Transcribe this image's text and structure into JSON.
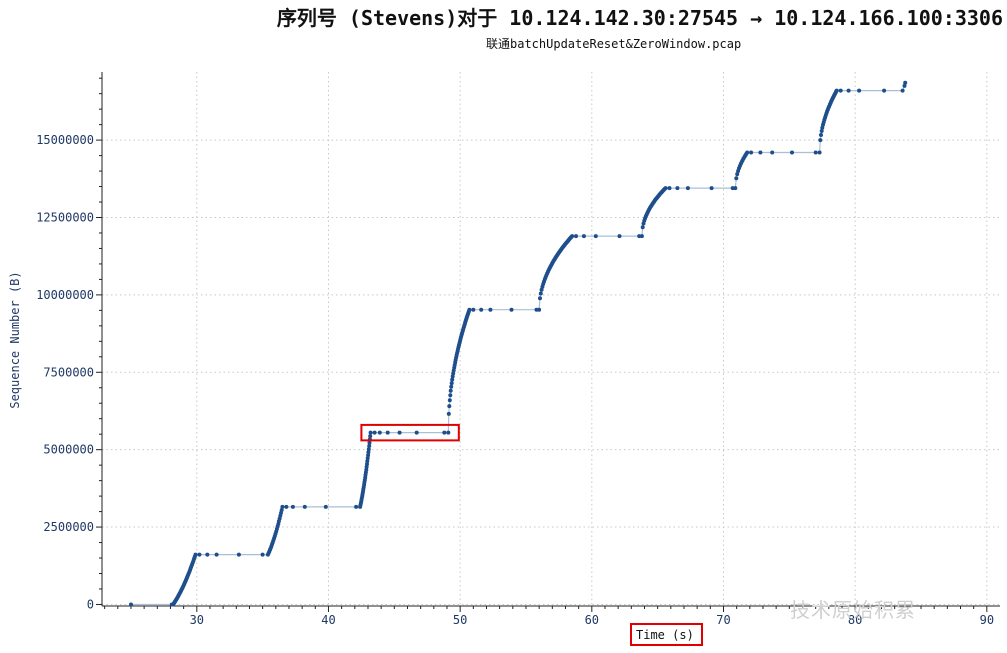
{
  "header": {
    "title": "序列号 (Stevens)对于 10.124.142.30:27545 → 10.124.166.100:3306",
    "subtitle": "联通batchUpdateReset&ZeroWindow.pcap"
  },
  "watermark": "技术原始积累",
  "colors": {
    "series": "#1f4e8c",
    "line": "#a9bfd6",
    "grid": "#c8c8c8",
    "highlight": "#e00000",
    "axis": "#1f3864"
  },
  "chart_data": {
    "type": "scatter",
    "title": "序列号 (Stevens)对于 10.124.142.30:27545 → 10.124.166.100:3306",
    "subtitle": "联通batchUpdateReset&ZeroWindow.pcap",
    "xlabel": "Time (s)",
    "ylabel": "Sequence Number (B)",
    "xlim": [
      22.8,
      91
    ],
    "ylim": [
      -50000,
      17200000
    ],
    "xticks": [
      30,
      40,
      50,
      60,
      70,
      80,
      90
    ],
    "yticks": [
      0,
      2500000,
      5000000,
      7500000,
      10000000,
      12500000,
      15000000
    ],
    "ytick_labels": [
      "0",
      "2500000",
      "5000000",
      "7500000",
      "10000000",
      "12500000",
      "15000000"
    ],
    "grid": true,
    "highlights": [
      {
        "description": "flat segment",
        "x_range": [
          42.5,
          49.9
        ],
        "y_range": [
          5300000,
          5800000
        ]
      },
      {
        "description": "x-axis label",
        "target": "xlabel"
      }
    ],
    "segments": [
      {
        "t0": 28.2,
        "t1": 29.9,
        "y0": 0,
        "y1": 1610000,
        "shape": "up",
        "n": 34
      },
      {
        "t0": 29.9,
        "t1": 35.4,
        "y": 1610000,
        "flat_x": [
          30.2,
          30.8,
          31.5,
          33.2,
          35.0
        ]
      },
      {
        "t0": 35.4,
        "t1": 36.5,
        "y0": 1610000,
        "y1": 3150000,
        "shape": "up",
        "n": 22
      },
      {
        "t0": 36.5,
        "t1": 42.4,
        "y": 3150000,
        "flat_x": [
          36.8,
          37.3,
          38.2,
          39.8,
          42.1
        ]
      },
      {
        "t0": 42.4,
        "t1": 43.2,
        "y0": 3150000,
        "y1": 5550000,
        "shape": "up",
        "n": 30
      },
      {
        "t0": 43.2,
        "t1": 49.1,
        "y": 5550000,
        "flat_x": [
          43.5,
          43.9,
          44.5,
          45.4,
          46.7,
          48.8
        ]
      },
      {
        "t0": 49.1,
        "t1": 50.7,
        "y0": 5550000,
        "y1": 9520000,
        "shape": "down",
        "n": 44
      },
      {
        "t0": 50.7,
        "t1": 56.0,
        "y": 9520000,
        "flat_x": [
          51.0,
          51.6,
          52.3,
          53.9,
          55.8
        ]
      },
      {
        "t0": 56.0,
        "t1": 58.5,
        "y0": 9520000,
        "y1": 11900000,
        "shape": "down",
        "n": 42
      },
      {
        "t0": 58.5,
        "t1": 63.8,
        "y": 11900000,
        "flat_x": [
          58.8,
          59.4,
          60.3,
          62.1,
          63.6
        ]
      },
      {
        "t0": 63.8,
        "t1": 65.6,
        "y0": 11900000,
        "y1": 13450000,
        "shape": "down",
        "n": 30
      },
      {
        "t0": 65.6,
        "t1": 70.9,
        "y": 13450000,
        "flat_x": [
          65.9,
          66.5,
          67.3,
          69.1,
          70.7
        ]
      },
      {
        "t0": 70.9,
        "t1": 71.8,
        "y0": 13450000,
        "y1": 14600000,
        "shape": "down",
        "n": 14
      },
      {
        "t0": 71.8,
        "t1": 77.3,
        "y": 14600000,
        "flat_x": [
          72.1,
          72.8,
          73.7,
          75.2,
          77.0
        ]
      },
      {
        "t0": 77.3,
        "t1": 78.6,
        "y0": 14600000,
        "y1": 16600000,
        "shape": "down",
        "n": 26
      },
      {
        "t0": 78.6,
        "t1": 83.7,
        "y": 16600000,
        "flat_x": [
          78.9,
          79.5,
          80.3,
          82.2,
          83.6
        ]
      },
      {
        "points": [
          [
            25.0,
            0
          ],
          [
            28.1,
            0
          ],
          [
            83.75,
            16750000
          ],
          [
            83.8,
            16850000
          ]
        ]
      }
    ]
  }
}
